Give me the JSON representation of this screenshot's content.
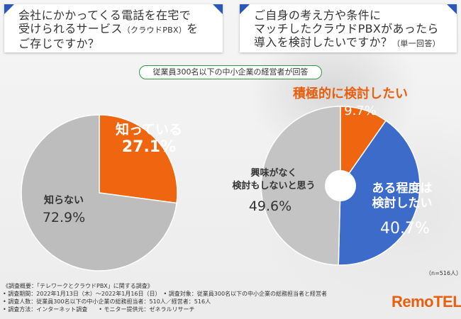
{
  "questions": {
    "q1": "会社にかかってくる電話を在宅で\n受けられるサービス",
    "q1_small": "（クラウドPBX）",
    "q1_end": "を\nご存じですか？",
    "q2": "ご自身の考え方や条件に\nマッチしたクラウドPBXがあったら\n導入を検討したいですか？",
    "q2_small": "（単一回答）"
  },
  "banner": "従業員300名以下の中小企業の経営者が回答",
  "chart_data": [
    {
      "type": "pie",
      "slices": [
        {
          "label": "知っている",
          "value": 27.1,
          "display": "27.1%",
          "color": "#f0650f"
        },
        {
          "label": "知らない",
          "value": 72.9,
          "display": "72.9%",
          "color": "#bdbdbd"
        }
      ]
    },
    {
      "type": "pie",
      "slices": [
        {
          "label": "積極的に検討したい",
          "value": 9.7,
          "display": "9.7%",
          "color": "#f0650f"
        },
        {
          "label": "ある程度は\n検討したい",
          "value": 40.7,
          "display": "40.7%",
          "color": "#3d6bc9"
        },
        {
          "label": "興味がなく\n検討もしないと思う",
          "value": 49.6,
          "display": "49.6%",
          "color": "#c4c4c4"
        }
      ]
    }
  ],
  "sample_size": "（n=516人）",
  "footer": [
    "《調査概要：「テレワークとクラウドPBX」に関する調査》",
    "• 調査期間：2022年1月13日（木）〜2022年1月16日（日）　• 調査対象：従業員300名以下の中小企業の総務担当者と経営者",
    "• 調査人数：従業員300名以下の中小企業の総務担当者：510人／経営者：516人",
    "• 調査方法：インターネット調査　　• モニター提供元：ゼネラルリサーチ"
  ],
  "logo": "RemoTEL"
}
